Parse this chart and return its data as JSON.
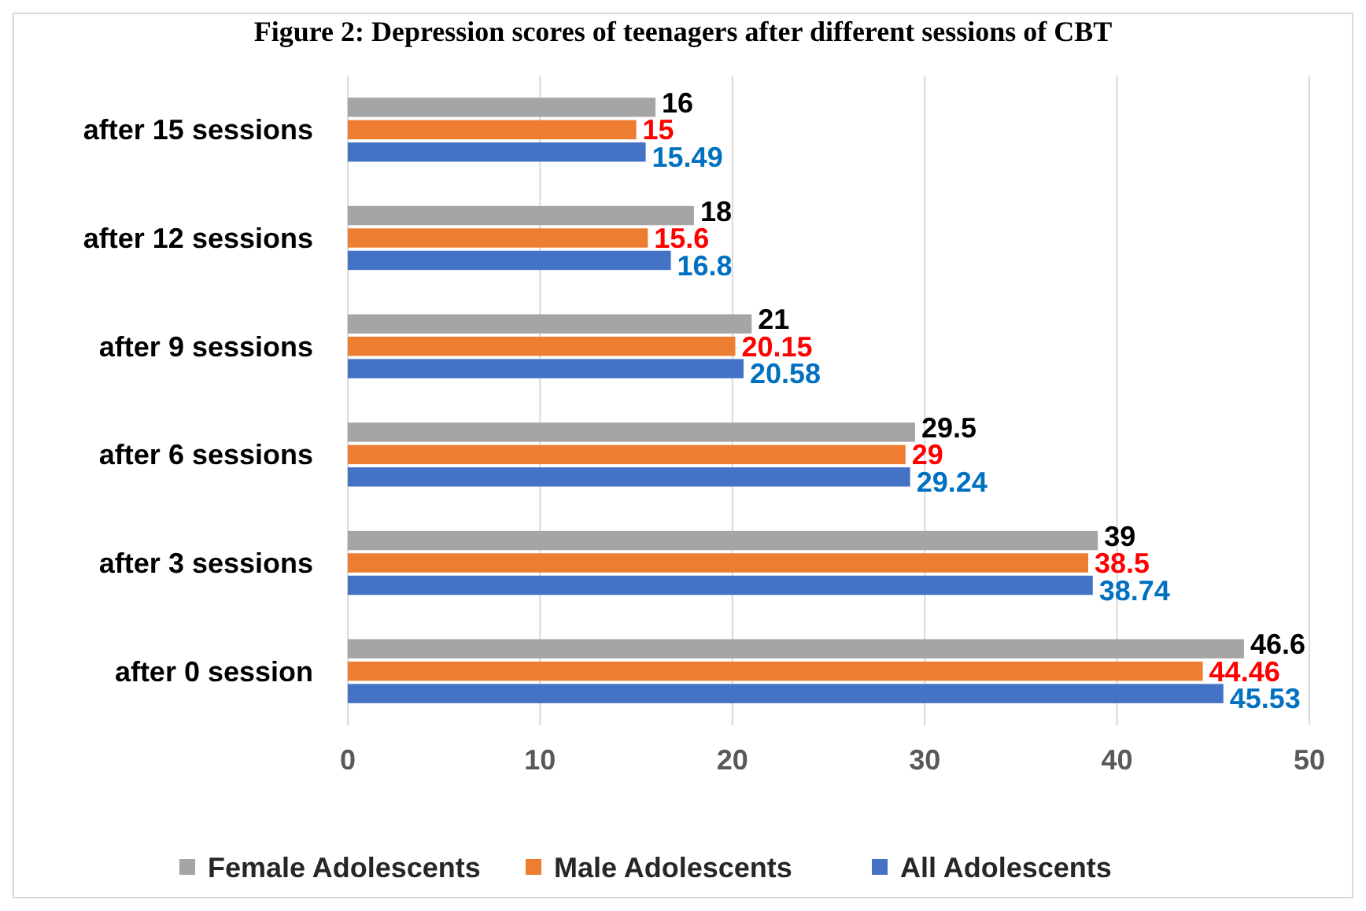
{
  "chart_data": {
    "type": "bar",
    "orientation": "horizontal",
    "title": "Figure 2: Depression scores of teenagers after different sessions of CBT",
    "categories": [
      "after 15 sessions",
      "after 12 sessions",
      "after 9 sessions",
      "after 6 sessions",
      "after 3 sessions",
      "after 0 session"
    ],
    "series": [
      {
        "name": "Female Adolescents",
        "color": "#a5a5a5",
        "values": [
          16,
          18,
          21,
          29.5,
          39,
          46.6
        ]
      },
      {
        "name": "Male Adolescents",
        "color": "#ed7d31",
        "values": [
          15,
          15.6,
          20.15,
          29,
          38.5,
          44.46
        ]
      },
      {
        "name": "All Adolescents",
        "color": "#4472c4",
        "values": [
          15.49,
          16.8,
          20.58,
          29.24,
          38.74,
          45.53
        ]
      }
    ],
    "xlim": [
      0,
      50
    ],
    "xticks": [
      0,
      10,
      20,
      30,
      40,
      50
    ],
    "grid": "x",
    "legend": "bottom",
    "data_labels": true
  }
}
